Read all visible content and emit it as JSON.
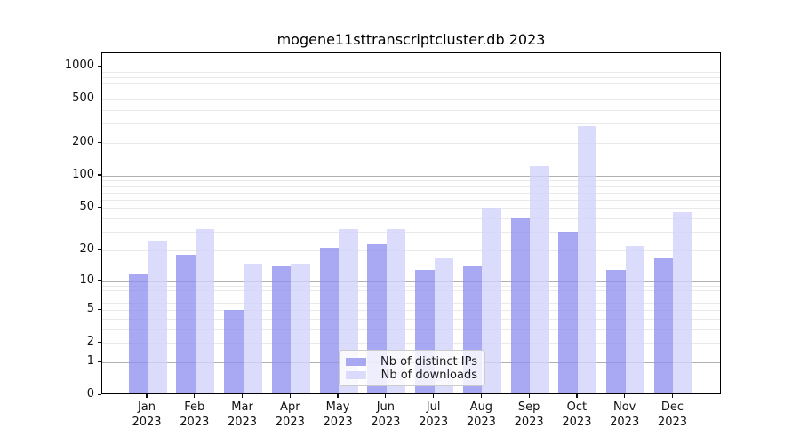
{
  "chart_data": {
    "type": "bar",
    "title": "mogene11sttranscriptcluster.db 2023",
    "categories": [
      "Jan",
      "Feb",
      "Mar",
      "Apr",
      "May",
      "Jun",
      "Jul",
      "Aug",
      "Sep",
      "Oct",
      "Nov",
      "Dec"
    ],
    "tick_year": "2023",
    "series": [
      {
        "name": "Nb of distinct IPs",
        "color": "#8f8ff0",
        "alpha": 0.77,
        "values": [
          12,
          18,
          5,
          14,
          21,
          23,
          13,
          14,
          40,
          30,
          13,
          17
        ]
      },
      {
        "name": "Nb of downloads",
        "color": "#d2d2fa",
        "alpha": 0.8,
        "values": [
          25,
          32,
          15,
          15,
          32,
          32,
          17,
          50,
          123,
          285,
          22,
          46
        ]
      }
    ],
    "xlabel": "",
    "ylabel": "",
    "yscale": "log1p",
    "ylim": [
      0,
      1325
    ],
    "yticks": [
      0,
      1,
      2,
      5,
      10,
      20,
      50,
      100,
      200,
      500,
      1000
    ],
    "grid": {
      "major_at": [
        1,
        10,
        100,
        1000
      ],
      "major_color": "#b0b0b0",
      "minor_color": "#eaeaea",
      "minor_decades": [
        1,
        10,
        100
      ]
    },
    "legend_position": "inside-lower-center",
    "axis_color": "#000000"
  }
}
